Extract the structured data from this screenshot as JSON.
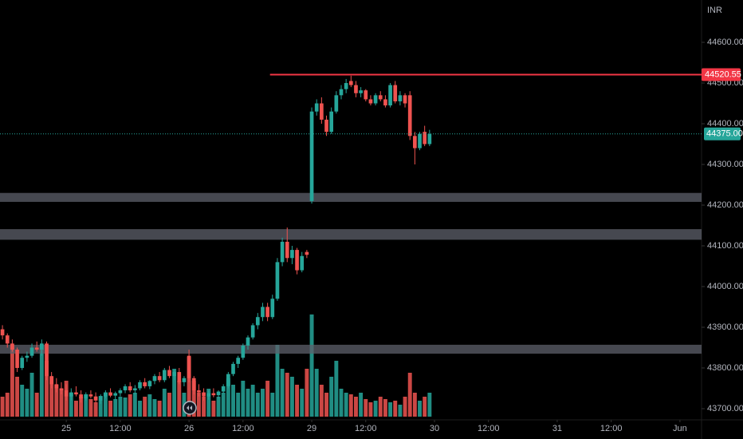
{
  "chart_data": {
    "type": "candlestick",
    "currency": "INR",
    "up_color": "#26a69a",
    "down_color": "#ef5350",
    "open": [
      43895,
      43880,
      43860,
      43845,
      43800,
      43825,
      43830,
      43850,
      43845,
      43860,
      43780,
      43760,
      43750,
      43745,
      43730,
      43740,
      43735,
      43725,
      43735,
      43730,
      43720,
      43730,
      43740,
      43732,
      43738,
      43745,
      43755,
      43745,
      43750,
      43765,
      43755,
      43768,
      43780,
      43770,
      43795,
      43780,
      43790,
      43765,
      43830,
      43775,
      43745,
      43740,
      43730,
      43738,
      43733,
      43742,
      43755,
      43785,
      43810,
      43825,
      43855,
      43875,
      43905,
      43925,
      43950,
      43925,
      43970,
      44060,
      44110,
      44070,
      44090,
      44040,
      44085,
      44210,
      44430,
      44450,
      44410,
      44380,
      44430,
      44470,
      44485,
      44505,
      44495,
      44475,
      44482,
      44460,
      44450,
      44470,
      44460,
      44445,
      44495,
      44455,
      44470,
      44470,
      44370,
      44340,
      44380,
      44350
    ],
    "high": [
      43905,
      43885,
      43870,
      43850,
      43830,
      43840,
      43860,
      43865,
      43870,
      43865,
      43790,
      43775,
      43765,
      43760,
      43750,
      43755,
      43745,
      43740,
      43745,
      43740,
      43735,
      43745,
      43750,
      43742,
      43750,
      43760,
      43765,
      43758,
      43770,
      43775,
      43770,
      43785,
      43790,
      43800,
      43805,
      43795,
      43800,
      43780,
      43845,
      43780,
      43760,
      43750,
      43745,
      43750,
      43745,
      43760,
      43790,
      43815,
      43830,
      43860,
      43880,
      43910,
      43935,
      43960,
      43960,
      43980,
      44070,
      44120,
      44145,
      44100,
      44095,
      44085,
      44090,
      44440,
      44460,
      44465,
      44420,
      44440,
      44480,
      44495,
      44510,
      44518,
      44505,
      44490,
      44485,
      44470,
      44475,
      44480,
      44470,
      44500,
      44505,
      44480,
      44475,
      44480,
      44380,
      44380,
      44395,
      44385
    ],
    "low": [
      43870,
      43850,
      43840,
      43790,
      43795,
      43815,
      43825,
      43840,
      43830,
      43770,
      43750,
      43740,
      43735,
      43720,
      43720,
      43730,
      43715,
      43720,
      43725,
      43715,
      43712,
      43725,
      43728,
      43722,
      43730,
      43738,
      43740,
      43735,
      43745,
      43750,
      43748,
      43760,
      43765,
      43765,
      43775,
      43770,
      43760,
      43755,
      43765,
      43735,
      43730,
      43720,
      43722,
      43728,
      43725,
      43738,
      43750,
      43780,
      43800,
      43820,
      43845,
      43870,
      43895,
      43915,
      43915,
      43920,
      43965,
      44050,
      44060,
      44055,
      44030,
      44035,
      44070,
      44204,
      44420,
      44400,
      44370,
      44375,
      44425,
      44460,
      44475,
      44490,
      44465,
      44465,
      44455,
      44445,
      44445,
      44455,
      44440,
      44440,
      44450,
      44445,
      44440,
      44360,
      44300,
      44335,
      44345,
      44345
    ],
    "close": [
      43880,
      43860,
      43845,
      43800,
      43825,
      43830,
      43850,
      43845,
      43860,
      43780,
      43760,
      43750,
      43745,
      43730,
      43740,
      43735,
      43725,
      43735,
      43730,
      43720,
      43730,
      43740,
      43732,
      43738,
      43745,
      43755,
      43745,
      43750,
      43765,
      43755,
      43768,
      43780,
      43770,
      43795,
      43780,
      43790,
      43765,
      43775,
      43775,
      43745,
      43740,
      43730,
      43738,
      43733,
      43742,
      43755,
      43785,
      43810,
      43825,
      43855,
      43875,
      43905,
      43925,
      43950,
      43925,
      43970,
      44060,
      44110,
      44070,
      44090,
      44040,
      44075,
      44078,
      44430,
      44450,
      44410,
      44380,
      44430,
      44470,
      44485,
      44500,
      44495,
      44475,
      44482,
      44460,
      44450,
      44470,
      44460,
      44445,
      44495,
      44455,
      44470,
      44450,
      44370,
      44340,
      44375,
      44350,
      44375
    ],
    "volume": [
      25,
      30,
      90,
      50,
      40,
      35,
      55,
      30,
      85,
      70,
      50,
      40,
      35,
      45,
      30,
      20,
      25,
      28,
      22,
      18,
      26,
      30,
      20,
      22,
      25,
      24,
      28,
      30,
      20,
      25,
      28,
      22,
      20,
      35,
      30,
      60,
      45,
      30,
      75,
      45,
      30,
      25,
      35,
      20,
      25,
      30,
      48,
      40,
      30,
      45,
      35,
      40,
      30,
      35,
      45,
      30,
      90,
      60,
      55,
      50,
      40,
      35,
      60,
      128,
      60,
      40,
      30,
      50,
      70,
      35,
      30,
      28,
      25,
      30,
      22,
      18,
      20,
      25,
      22,
      18,
      20,
      15,
      25,
      55,
      30,
      20,
      25,
      30
    ],
    "zones": [
      {
        "from": 44208,
        "to": 44230
      },
      {
        "from": 44115,
        "to": 44141
      },
      {
        "from": 43835,
        "to": 43857
      }
    ],
    "zone_color": "#5d606b",
    "level": {
      "value": 44520.55,
      "label": "44520.55",
      "color": "#f23645"
    },
    "last_price": {
      "value": 44375,
      "label": "44375.00"
    },
    "xlim": [
      -0.5,
      142.4
    ],
    "xticks": [
      {
        "value": 13,
        "label": "25"
      },
      {
        "value": 24,
        "label": "12:00"
      },
      {
        "value": 38,
        "label": "26"
      },
      {
        "value": 49,
        "label": "12:00"
      },
      {
        "value": 63,
        "label": "29"
      },
      {
        "value": 74,
        "label": "12:00"
      },
      {
        "value": 88,
        "label": "30"
      },
      {
        "value": 99,
        "label": "12:00"
      },
      {
        "value": 113,
        "label": "31"
      },
      {
        "value": 124,
        "label": "12:00"
      },
      {
        "value": 138,
        "label": "Jun"
      }
    ],
    "ylim": [
      43672.5,
      44704
    ],
    "yticks": [
      {
        "value": 43700,
        "label": "43700.00"
      },
      {
        "value": 43800,
        "label": "43800.00"
      },
      {
        "value": 43900,
        "label": "43900.00"
      },
      {
        "value": 44000,
        "label": "44000.00"
      },
      {
        "value": 44100,
        "label": "44100.00"
      },
      {
        "value": 44200,
        "label": "44200.00"
      },
      {
        "value": 44300,
        "label": "44300.00"
      },
      {
        "value": 44400,
        "label": "44400.00"
      },
      {
        "value": 44500,
        "label": "44500.00"
      },
      {
        "value": 44600,
        "label": "44600.00"
      }
    ]
  }
}
